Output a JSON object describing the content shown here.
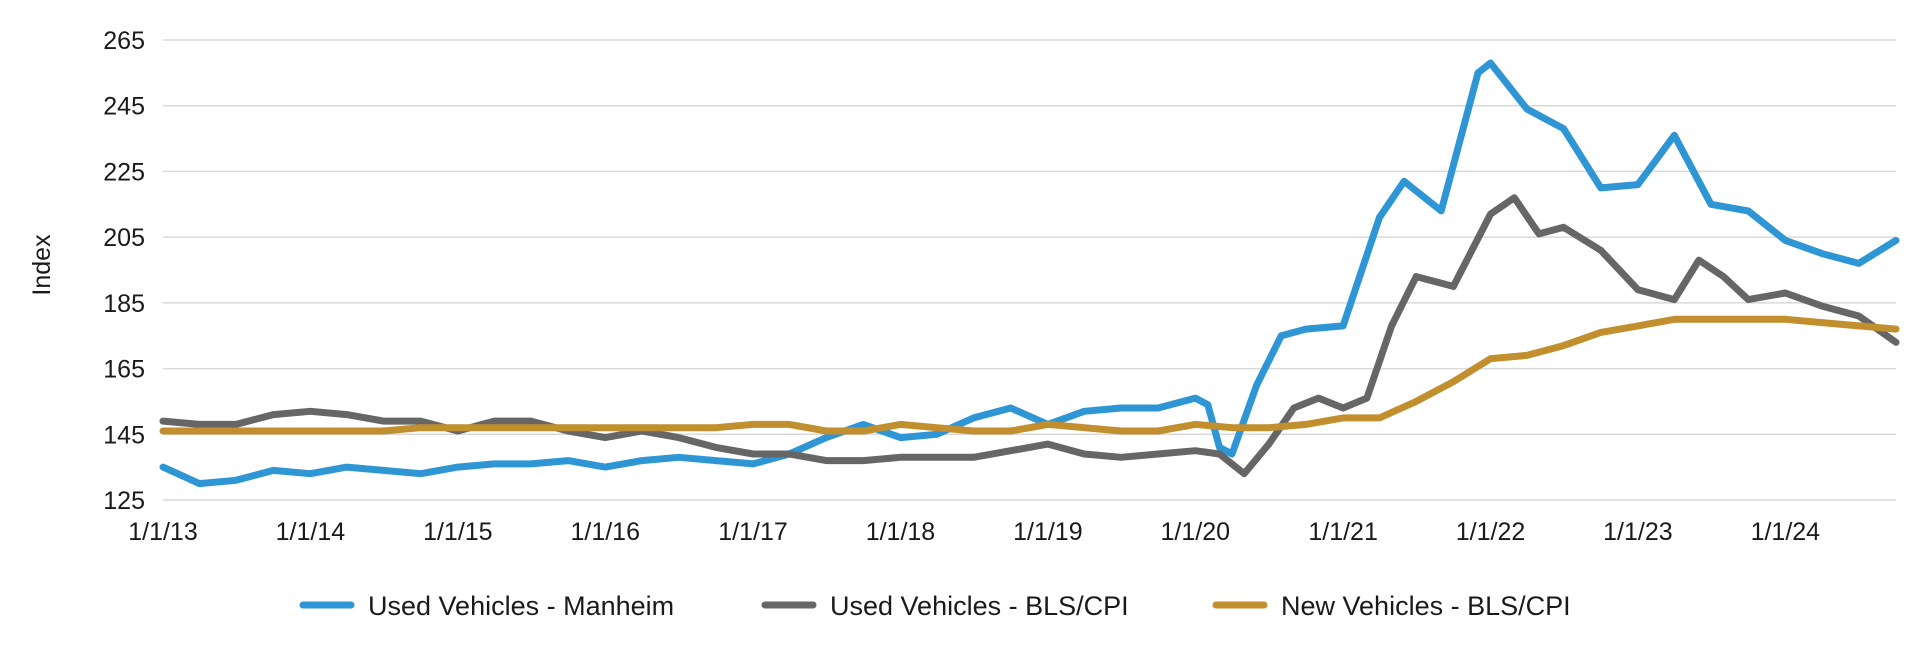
{
  "chart_data": {
    "type": "line",
    "title": "",
    "xlabel": "",
    "ylabel": "Index",
    "ylim": [
      125,
      265
    ],
    "yticks": [
      125,
      145,
      165,
      185,
      205,
      225,
      245,
      265
    ],
    "xlim": [
      "2013-01-01",
      "2024-10-01"
    ],
    "xtick_labels": [
      "1/1/13",
      "1/1/14",
      "1/1/15",
      "1/1/16",
      "1/1/17",
      "1/1/18",
      "1/1/19",
      "1/1/20",
      "1/1/21",
      "1/1/22",
      "1/1/23",
      "1/1/24"
    ],
    "xtick_dates": [
      "2013-01-01",
      "2014-01-01",
      "2015-01-01",
      "2016-01-01",
      "2017-01-01",
      "2018-01-01",
      "2019-01-01",
      "2020-01-01",
      "2021-01-01",
      "2022-01-01",
      "2023-01-01",
      "2024-01-01"
    ],
    "grid": "horizontal",
    "legend_position": "bottom",
    "series": [
      {
        "name": "Used Vehicles - Manheim",
        "color": "#2e96d4",
        "points": [
          [
            "2013-01-01",
            135
          ],
          [
            "2013-04-01",
            130
          ],
          [
            "2013-07-01",
            131
          ],
          [
            "2013-10-01",
            134
          ],
          [
            "2014-01-01",
            133
          ],
          [
            "2014-04-01",
            135
          ],
          [
            "2014-07-01",
            134
          ],
          [
            "2014-10-01",
            133
          ],
          [
            "2015-01-01",
            135
          ],
          [
            "2015-04-01",
            136
          ],
          [
            "2015-07-01",
            136
          ],
          [
            "2015-10-01",
            137
          ],
          [
            "2016-01-01",
            135
          ],
          [
            "2016-04-01",
            137
          ],
          [
            "2016-07-01",
            138
          ],
          [
            "2016-10-01",
            137
          ],
          [
            "2017-01-01",
            136
          ],
          [
            "2017-04-01",
            139
          ],
          [
            "2017-07-01",
            144
          ],
          [
            "2017-10-01",
            148
          ],
          [
            "2018-01-01",
            144
          ],
          [
            "2018-04-01",
            145
          ],
          [
            "2018-07-01",
            150
          ],
          [
            "2018-10-01",
            153
          ],
          [
            "2019-01-01",
            148
          ],
          [
            "2019-04-01",
            152
          ],
          [
            "2019-07-01",
            153
          ],
          [
            "2019-10-01",
            153
          ],
          [
            "2020-01-01",
            156
          ],
          [
            "2020-02-01",
            154
          ],
          [
            "2020-03-01",
            141
          ],
          [
            "2020-04-01",
            139
          ],
          [
            "2020-06-01",
            160
          ],
          [
            "2020-08-01",
            175
          ],
          [
            "2020-10-01",
            177
          ],
          [
            "2021-01-01",
            178
          ],
          [
            "2021-04-01",
            211
          ],
          [
            "2021-06-01",
            222
          ],
          [
            "2021-09-01",
            213
          ],
          [
            "2021-12-01",
            255
          ],
          [
            "2022-01-01",
            258
          ],
          [
            "2022-04-01",
            244
          ],
          [
            "2022-07-01",
            238
          ],
          [
            "2022-10-01",
            220
          ],
          [
            "2023-01-01",
            221
          ],
          [
            "2023-04-01",
            236
          ],
          [
            "2023-07-01",
            215
          ],
          [
            "2023-10-01",
            213
          ],
          [
            "2024-01-01",
            204
          ],
          [
            "2024-04-01",
            200
          ],
          [
            "2024-07-01",
            197
          ],
          [
            "2024-10-01",
            204
          ]
        ]
      },
      {
        "name": "Used Vehicles - BLS/CPI",
        "color": "#666666",
        "points": [
          [
            "2013-01-01",
            149
          ],
          [
            "2013-04-01",
            148
          ],
          [
            "2013-07-01",
            148
          ],
          [
            "2013-10-01",
            151
          ],
          [
            "2014-01-01",
            152
          ],
          [
            "2014-04-01",
            151
          ],
          [
            "2014-07-01",
            149
          ],
          [
            "2014-10-01",
            149
          ],
          [
            "2015-01-01",
            146
          ],
          [
            "2015-04-01",
            149
          ],
          [
            "2015-07-01",
            149
          ],
          [
            "2015-10-01",
            146
          ],
          [
            "2016-01-01",
            144
          ],
          [
            "2016-04-01",
            146
          ],
          [
            "2016-07-01",
            144
          ],
          [
            "2016-10-01",
            141
          ],
          [
            "2017-01-01",
            139
          ],
          [
            "2017-04-01",
            139
          ],
          [
            "2017-07-01",
            137
          ],
          [
            "2017-10-01",
            137
          ],
          [
            "2018-01-01",
            138
          ],
          [
            "2018-04-01",
            138
          ],
          [
            "2018-07-01",
            138
          ],
          [
            "2018-10-01",
            140
          ],
          [
            "2019-01-01",
            142
          ],
          [
            "2019-04-01",
            139
          ],
          [
            "2019-07-01",
            138
          ],
          [
            "2019-10-01",
            139
          ],
          [
            "2020-01-01",
            140
          ],
          [
            "2020-03-01",
            139
          ],
          [
            "2020-05-01",
            133
          ],
          [
            "2020-07-01",
            142
          ],
          [
            "2020-09-01",
            153
          ],
          [
            "2020-11-01",
            156
          ],
          [
            "2021-01-01",
            153
          ],
          [
            "2021-03-01",
            156
          ],
          [
            "2021-05-01",
            178
          ],
          [
            "2021-07-01",
            193
          ],
          [
            "2021-10-01",
            190
          ],
          [
            "2022-01-01",
            212
          ],
          [
            "2022-03-01",
            217
          ],
          [
            "2022-05-01",
            206
          ],
          [
            "2022-07-01",
            208
          ],
          [
            "2022-10-01",
            201
          ],
          [
            "2023-01-01",
            189
          ],
          [
            "2023-04-01",
            186
          ],
          [
            "2023-06-01",
            198
          ],
          [
            "2023-08-01",
            193
          ],
          [
            "2023-10-01",
            186
          ],
          [
            "2024-01-01",
            188
          ],
          [
            "2024-04-01",
            184
          ],
          [
            "2024-07-01",
            181
          ],
          [
            "2024-10-01",
            173
          ]
        ]
      },
      {
        "name": "New Vehicles - BLS/CPI",
        "color": "#c18f2e",
        "points": [
          [
            "2013-01-01",
            146
          ],
          [
            "2013-04-01",
            146
          ],
          [
            "2013-07-01",
            146
          ],
          [
            "2013-10-01",
            146
          ],
          [
            "2014-01-01",
            146
          ],
          [
            "2014-04-01",
            146
          ],
          [
            "2014-07-01",
            146
          ],
          [
            "2014-10-01",
            147
          ],
          [
            "2015-01-01",
            147
          ],
          [
            "2015-04-01",
            147
          ],
          [
            "2015-07-01",
            147
          ],
          [
            "2015-10-01",
            147
          ],
          [
            "2016-01-01",
            147
          ],
          [
            "2016-04-01",
            147
          ],
          [
            "2016-07-01",
            147
          ],
          [
            "2016-10-01",
            147
          ],
          [
            "2017-01-01",
            148
          ],
          [
            "2017-04-01",
            148
          ],
          [
            "2017-07-01",
            146
          ],
          [
            "2017-10-01",
            146
          ],
          [
            "2018-01-01",
            148
          ],
          [
            "2018-04-01",
            147
          ],
          [
            "2018-07-01",
            146
          ],
          [
            "2018-10-01",
            146
          ],
          [
            "2019-01-01",
            148
          ],
          [
            "2019-04-01",
            147
          ],
          [
            "2019-07-01",
            146
          ],
          [
            "2019-10-01",
            146
          ],
          [
            "2020-01-01",
            148
          ],
          [
            "2020-04-01",
            147
          ],
          [
            "2020-07-01",
            147
          ],
          [
            "2020-10-01",
            148
          ],
          [
            "2021-01-01",
            150
          ],
          [
            "2021-04-01",
            150
          ],
          [
            "2021-07-01",
            155
          ],
          [
            "2021-10-01",
            161
          ],
          [
            "2022-01-01",
            168
          ],
          [
            "2022-04-01",
            169
          ],
          [
            "2022-07-01",
            172
          ],
          [
            "2022-10-01",
            176
          ],
          [
            "2023-01-01",
            178
          ],
          [
            "2023-04-01",
            180
          ],
          [
            "2023-07-01",
            180
          ],
          [
            "2023-10-01",
            180
          ],
          [
            "2024-01-01",
            180
          ],
          [
            "2024-04-01",
            179
          ],
          [
            "2024-07-01",
            178
          ],
          [
            "2024-10-01",
            177
          ]
        ]
      }
    ]
  }
}
